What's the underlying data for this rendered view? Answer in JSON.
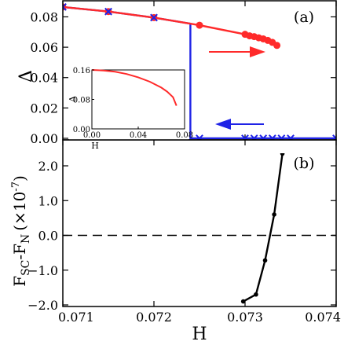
{
  "chart_data": [
    {
      "panel_label": "(a)",
      "type": "line",
      "xlim": [
        0.071,
        0.074
      ],
      "ylim": [
        0.0,
        0.088
      ],
      "ylabel": "Δ",
      "xticks": [
        0.071,
        0.072,
        0.073,
        0.074
      ],
      "yticks": [
        0.0,
        0.02,
        0.04,
        0.06,
        0.08
      ],
      "ytick_labels": [
        "0.00",
        "0.02",
        "0.04",
        "0.06",
        "0.08"
      ],
      "series": [
        {
          "color": "#ff2a2a",
          "marker": "circle",
          "x": [
            0.071,
            0.0715,
            0.072,
            0.0725,
            0.073,
            0.07305,
            0.0731,
            0.07315,
            0.0732,
            0.07325,
            0.0733,
            0.07335
          ],
          "y": [
            0.0865,
            0.0835,
            0.0795,
            0.0745,
            0.0685,
            0.0675,
            0.067,
            0.0662,
            0.0655,
            0.0645,
            0.0632,
            0.0612
          ]
        },
        {
          "color": "#1f23e6",
          "marker": "x",
          "x": [
            0.071,
            0.0715,
            0.072,
            0.0724,
            0.0724,
            0.0724,
            0.07243,
            0.07243,
            0.0725,
            0.073,
            0.0731,
            0.0732,
            0.0733,
            0.0734,
            0.0735,
            0.074
          ],
          "y": [
            0.0865,
            0.0835,
            0.0795,
            0.0755,
            0.075,
            0.0,
            0.0,
            0.0,
            0.0,
            0.0,
            0.0,
            0.0,
            0.0,
            0.0,
            0.0,
            0.0
          ],
          "marker_indices": [
            0,
            1,
            2,
            8,
            9,
            10,
            11,
            12,
            13,
            14,
            15
          ]
        }
      ],
      "arrows": [
        {
          "direction": "right",
          "color": "#ff2a2a"
        },
        {
          "direction": "left",
          "color": "#1f23e6"
        }
      ],
      "inset": {
        "type": "line",
        "xlabel": "H",
        "ylabel": "Δ",
        "xlim": [
          0.0,
          0.08
        ],
        "ylim": [
          0.0,
          0.16
        ],
        "xtick_labels": [
          "0.00",
          "0.04",
          "0.08"
        ],
        "ytick_labels": [
          "0.00",
          "0.08",
          "0.16"
        ],
        "color": "#ff2a2a",
        "x": [
          0.0,
          0.01,
          0.02,
          0.03,
          0.04,
          0.05,
          0.06,
          0.065,
          0.07,
          0.073
        ],
        "y": [
          0.16,
          0.1585,
          0.155,
          0.149,
          0.14,
          0.128,
          0.112,
          0.101,
          0.086,
          0.063
        ]
      }
    },
    {
      "panel_label": "(b)",
      "type": "line",
      "xlabel": "H",
      "ylabel_main": "F",
      "ylabel_sub1": "SC",
      "ylabel_mid": "-F",
      "ylabel_sub2": "N",
      "ylabel_unit_open": "(×10",
      "ylabel_unit_exp": "-7",
      "ylabel_unit_close": ")",
      "xlim": [
        0.071,
        0.074
      ],
      "ylim": [
        -2.0,
        2.45
      ],
      "xticks": [
        0.071,
        0.072,
        0.073,
        0.074
      ],
      "xtick_labels": [
        "0.071",
        "0.072",
        "0.073",
        "0.074"
      ],
      "yticks": [
        -2.0,
        -1.0,
        0.0,
        1.0,
        2.0
      ],
      "ytick_labels": [
        "−2.0",
        "−1.0",
        "0.0",
        "1.0",
        "2.0"
      ],
      "zero_line": "dashed",
      "series": [
        {
          "color": "#000000",
          "marker": "circle",
          "x": [
            0.07298,
            0.07312,
            0.07322,
            0.07332,
            0.07341
          ],
          "y": [
            -1.9,
            -1.7,
            -0.72,
            0.6,
            2.35
          ]
        }
      ]
    }
  ]
}
